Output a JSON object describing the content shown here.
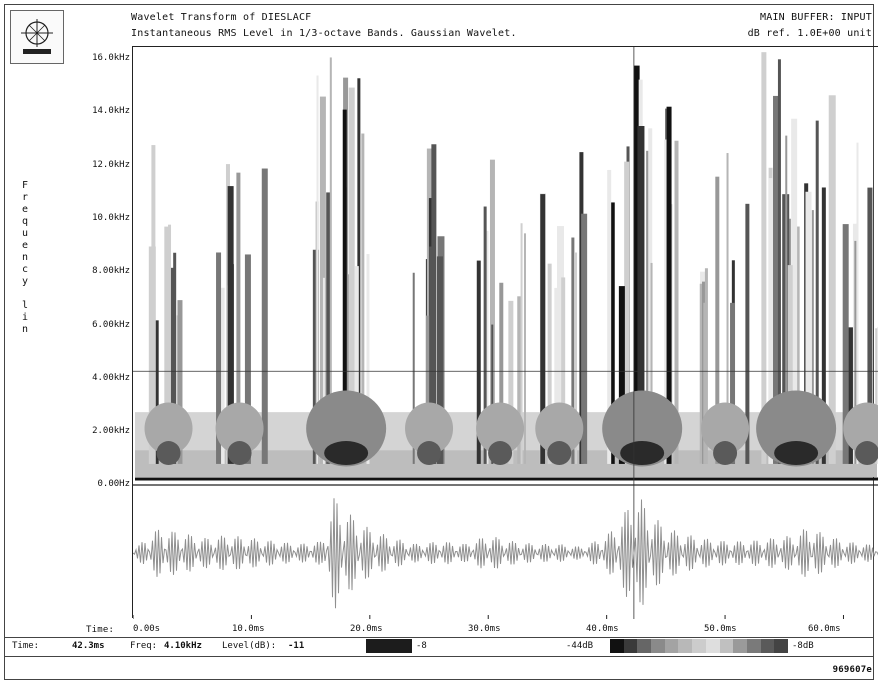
{
  "header": {
    "title": "Wavelet Transform of  DIESLACF",
    "subtitle": "Instantaneous RMS Level in 1/3-octave Bands. Gaussian Wavelet.",
    "buffer": "MAIN BUFFER: INPUT",
    "reference": "dB ref. 1.0E+00 unit"
  },
  "chart_data": [
    {
      "type": "heatmap",
      "title": "Wavelet Transform of  DIESLACF",
      "ylabel": "Frequency lin",
      "yticks": [
        "16.0kHz",
        "14.0kHz",
        "12.0kHz",
        "10.0kHz",
        "8.00kHz",
        "6.00kHz",
        "4.00kHz",
        "2.00kHz",
        "0.00Hz"
      ],
      "ylim": [
        0,
        16000
      ],
      "xlim": [
        0,
        63
      ],
      "cursor": {
        "time_ms": 42.3,
        "freq_hz": 4100
      },
      "bursts_time_ms": [
        3,
        9,
        18,
        25,
        31,
        36,
        43,
        50,
        56,
        62
      ],
      "dominant_bursts_time_ms": [
        18,
        43,
        57
      ],
      "level_scale_db": {
        "min": -44,
        "max": -8
      }
    },
    {
      "type": "line",
      "series": [
        {
          "x": [
            0,
            2,
            4,
            6,
            8,
            10,
            12,
            14,
            16,
            17,
            18,
            19,
            20,
            22,
            24,
            26,
            28,
            30,
            32,
            34,
            36,
            38,
            40,
            41,
            42,
            43,
            44,
            45,
            46,
            48,
            50,
            52,
            54,
            56,
            57,
            58,
            60,
            62,
            63
          ],
          "y": [
            0.05,
            0.4,
            0.35,
            0.25,
            0.3,
            0.25,
            0.2,
            0.15,
            0.2,
            0.95,
            0.7,
            0.55,
            0.4,
            0.25,
            0.15,
            0.2,
            0.15,
            0.3,
            0.2,
            0.15,
            0.15,
            0.1,
            0.3,
            0.5,
            0.85,
            0.9,
            0.6,
            0.45,
            0.35,
            0.25,
            0.2,
            0.2,
            0.25,
            0.3,
            0.45,
            0.35,
            0.2,
            0.15,
            0.1
          ]
        }
      ],
      "xlabel": "Time",
      "xticks": [
        "0.00s",
        "10.0ms",
        "20.0ms",
        "30.0ms",
        "40.0ms",
        "50.0ms",
        "60.0ms"
      ],
      "xlim": [
        0,
        63
      ]
    }
  ],
  "axes": {
    "time_label": "Time:"
  },
  "status": {
    "time_label": "Time:",
    "time_value": "42.3ms",
    "freq_label": "Freq:",
    "freq_value": "4.10kHz",
    "level_label": "Level(dB):",
    "level_value": "-11",
    "level_max": "-8",
    "scale_min": "-44dB",
    "scale_max": "-8dB"
  },
  "footer": {
    "id": "969607e"
  }
}
